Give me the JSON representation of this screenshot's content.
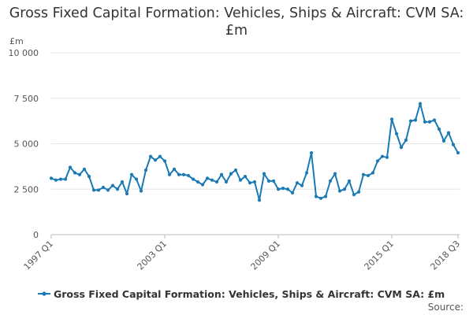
{
  "chart_data": {
    "type": "line",
    "title": "Gross Fixed Capital Formation: Vehicles, Ships & Aircraft: CVM SA: £m",
    "unit_label": "£m",
    "source_label": "Source:",
    "legend_label": "Gross Fixed Capital Formation: Vehicles, Ships & Aircraft: CVM SA: £m",
    "series_color": "#1a7ab5",
    "ylim": [
      0,
      10000
    ],
    "y_ticks": [
      0,
      2500,
      5000,
      7500,
      10000
    ],
    "y_tick_labels": [
      "0",
      "2 500",
      "5 000",
      "7 500",
      "10 000"
    ],
    "x_tick_labels": [
      "1997 Q1",
      "2003 Q1",
      "2009 Q1",
      "2015 Q1",
      "2018 Q3"
    ],
    "x_tick_index": [
      0,
      24,
      48,
      72,
      86
    ],
    "grid": true,
    "series": [
      {
        "name": "Gross Fixed Capital Formation: Vehicles, Ships & Aircraft: CVM SA: £m",
        "start": "1997 Q1",
        "values": [
          3100,
          3000,
          3050,
          3050,
          3700,
          3400,
          3300,
          3600,
          3200,
          2450,
          2450,
          2600,
          2450,
          2700,
          2500,
          2900,
          2250,
          3300,
          3050,
          2400,
          3550,
          4300,
          4100,
          4300,
          4050,
          3300,
          3600,
          3300,
          3300,
          3250,
          3050,
          2900,
          2750,
          3100,
          3000,
          2900,
          3300,
          2900,
          3350,
          3550,
          3000,
          3200,
          2850,
          2900,
          1900,
          3350,
          2950,
          2950,
          2500,
          2550,
          2500,
          2300,
          2850,
          2700,
          3400,
          4500,
          2100,
          2000,
          2100,
          2950,
          3350,
          2400,
          2500,
          2950,
          2200,
          2350,
          3300,
          3250,
          3400,
          4050,
          4300,
          4250,
          6350,
          5550,
          4800,
          5200,
          6250,
          6300,
          7200,
          6200,
          6200,
          6300,
          5800,
          5150,
          5600,
          4950,
          4500
        ]
      }
    ]
  }
}
